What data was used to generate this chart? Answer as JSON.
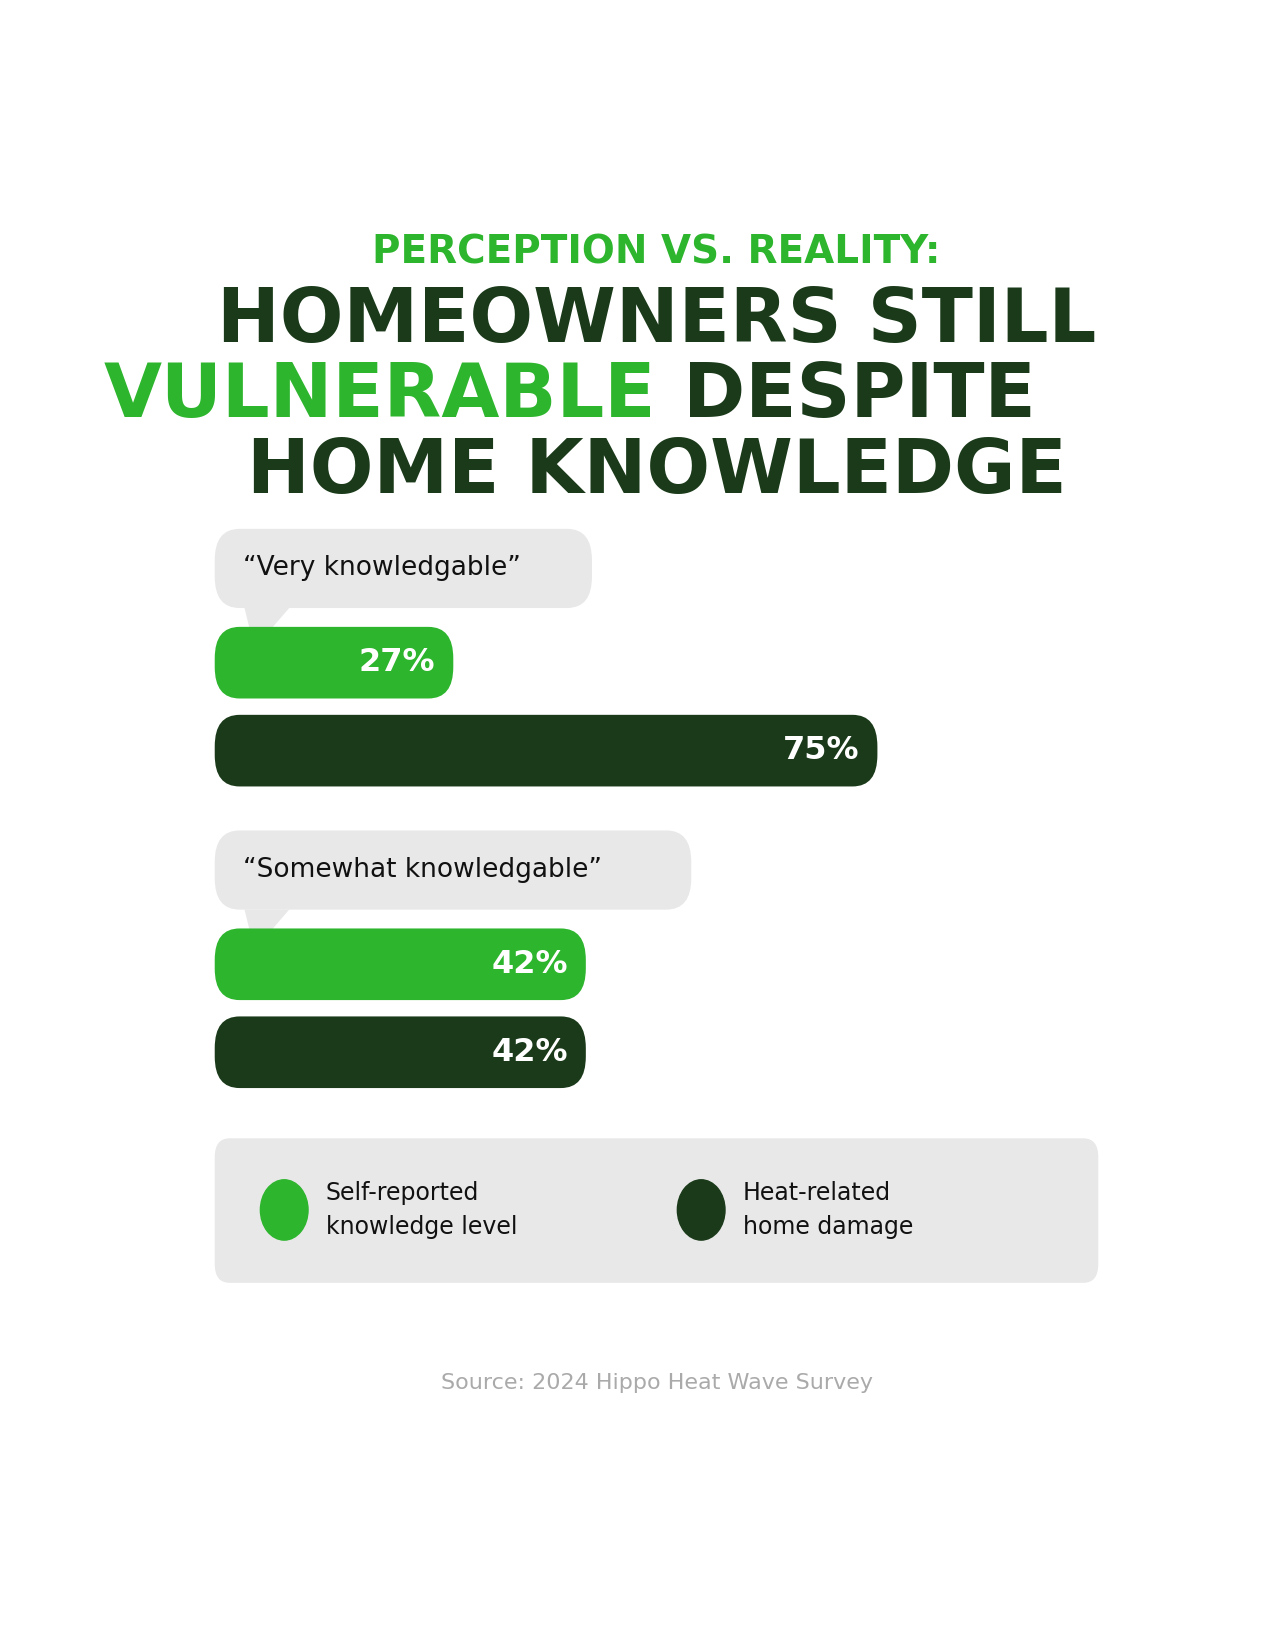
{
  "title_line1": "PERCEPTION VS. REALITY:",
  "title_line2": "HOMEOWNERS STILL",
  "title_line3_green": "VULNERABLE",
  "title_line3_dark": " DESPITE",
  "title_line4": "HOME KNOWLEDGE",
  "title_green_color": "#2db52d",
  "title_dark_color": "#1a3a1a",
  "bg_color": "#ffffff",
  "bubble_bg": "#e8e8e8",
  "bubble_text_color": "#111111",
  "bar_green": "#2db52d",
  "bar_dark": "#1a3a1a",
  "bar_text_color": "#ffffff",
  "legend_bg": "#e8e8e8",
  "source_text_color": "#aaaaaa",
  "group1_label": "“Very knowledgable”",
  "group1_bar1_value": 27,
  "group1_bar1_label": "27%",
  "group1_bar2_value": 75,
  "group1_bar2_label": "75%",
  "group2_label": "“Somewhat knowledgable”",
  "group2_bar1_value": 42,
  "group2_bar1_label": "42%",
  "group2_bar2_value": 42,
  "group2_bar2_label": "42%",
  "legend_label1": "Self-reported\nknowledge level",
  "legend_label2": "Heat-related\nhome damage",
  "source_text": "Source: 2024 Hippo Heat Wave Survey",
  "max_value": 100
}
